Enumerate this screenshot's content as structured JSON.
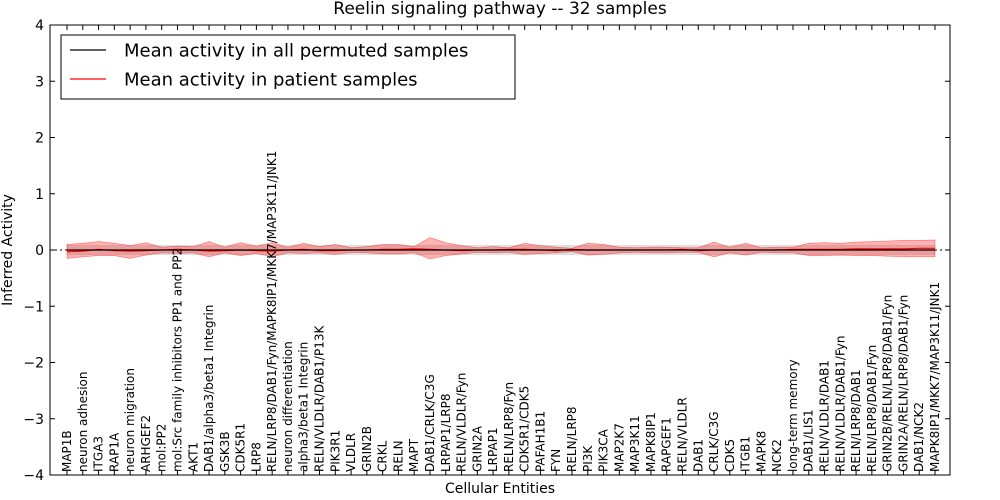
{
  "chart_data": {
    "type": "line",
    "title": "Reelin signaling pathway -- 32 samples",
    "xlabel": "Cellular Entities",
    "ylabel": "Inferred Activity",
    "ylim": [
      -4,
      4
    ],
    "yticks": [
      -4,
      -3,
      -2,
      -1,
      0,
      1,
      2,
      3,
      4
    ],
    "ytick_labels": [
      "−4",
      "−3",
      "−2",
      "−1",
      "0",
      "1",
      "2",
      "3",
      "4"
    ],
    "legend_position": "top-left",
    "categories": [
      "MAP1B",
      "neuron adhesion",
      "ITGA3",
      "RAP1A",
      "neuron migration",
      "ARHGEF2",
      "mol:PP2",
      "mol:Src family inhibitors PP1 and PP2",
      "AKT1",
      "DAB1/alpha3/beta1 Integrin",
      "GSK3B",
      "CDK5R1",
      "LRP8",
      "RELN/LRP8/DAB1/Fyn/MAPK8IP1/MKK7/MAP3K11/JNK1",
      "neuron differentiation",
      "alpha3/beta1 Integrin",
      "RELN/VLDLR/DAB1/P13K",
      "PIK3R1",
      "VLDLR",
      "GRIN2B",
      "CRKL",
      "RELN",
      "MAPT",
      "DAB1/CRLK/C3G",
      "LRPAP1/LRP8",
      "RELN/VLDLR/Fyn",
      "GRIN2A",
      "LRPAP1",
      "RELN/LRP8/Fyn",
      "CDK5R1/CDK5",
      "PAFAH1B1",
      "FYN",
      "RELN/LRP8",
      "PI3K",
      "PIK3CA",
      "MAP2K7",
      "MAP3K11",
      "MAPK8IP1",
      "RAPGEF1",
      "RELN/VLDLR",
      "DAB1",
      "CRLK/C3G",
      "CDK5",
      "ITGB1",
      "MAPK8",
      "NCK2",
      "long-term memory",
      "DAB1/LIS1",
      "RELN/VLDLR/DAB1",
      "RELN/VLDLR/DAB1/Fyn",
      "RELN/LRP8/DAB1",
      "RELN/LRP8/DAB1/Fyn",
      "GRIN2B/RELN/LRP8/DAB1/Fyn",
      "GRIN2A/RELN/LRP8/DAB1/Fyn",
      "DAB1/NCK2",
      "MAPK8IP1/MKK7/MAP3K11/JNK1"
    ],
    "series": [
      {
        "name": "Mean activity in all permuted samples",
        "color": "#000000",
        "values": [
          0.0,
          0.0,
          0.0,
          0.0,
          0.0,
          0.0,
          0.0,
          0.0,
          0.0,
          0.0,
          0.0,
          0.0,
          0.0,
          0.0,
          0.0,
          0.0,
          0.0,
          0.0,
          0.0,
          0.0,
          0.0,
          0.0,
          0.0,
          0.0,
          0.0,
          0.0,
          0.0,
          0.0,
          0.0,
          0.0,
          0.0,
          0.0,
          0.0,
          0.0,
          0.0,
          0.0,
          0.0,
          0.0,
          0.0,
          0.0,
          0.0,
          0.0,
          0.0,
          0.0,
          0.0,
          0.0,
          0.0,
          0.0,
          0.0,
          0.0,
          0.0,
          0.0,
          0.0,
          0.0,
          0.0,
          0.0
        ],
        "band_upper": [
          0.08,
          0.08,
          0.08,
          0.08,
          0.08,
          0.08,
          0.08,
          0.08,
          0.08,
          0.08,
          0.08,
          0.08,
          0.08,
          0.08,
          0.08,
          0.08,
          0.08,
          0.08,
          0.08,
          0.08,
          0.08,
          0.08,
          0.08,
          0.08,
          0.08,
          0.08,
          0.08,
          0.08,
          0.08,
          0.08,
          0.08,
          0.08,
          0.08,
          0.08,
          0.08,
          0.08,
          0.08,
          0.08,
          0.08,
          0.08,
          0.08,
          0.08,
          0.08,
          0.08,
          0.08,
          0.08,
          0.08,
          0.08,
          0.08,
          0.08,
          0.08,
          0.08,
          0.08,
          0.08,
          0.08,
          0.08
        ],
        "band_lower": [
          -0.08,
          -0.08,
          -0.08,
          -0.08,
          -0.08,
          -0.08,
          -0.08,
          -0.08,
          -0.08,
          -0.08,
          -0.08,
          -0.08,
          -0.08,
          -0.08,
          -0.08,
          -0.08,
          -0.08,
          -0.08,
          -0.08,
          -0.08,
          -0.08,
          -0.08,
          -0.08,
          -0.08,
          -0.08,
          -0.08,
          -0.08,
          -0.08,
          -0.08,
          -0.08,
          -0.08,
          -0.08,
          -0.08,
          -0.08,
          -0.08,
          -0.08,
          -0.08,
          -0.08,
          -0.08,
          -0.08,
          -0.08,
          -0.08,
          -0.08,
          -0.08,
          -0.08,
          -0.08,
          -0.08,
          -0.08,
          -0.08,
          -0.08,
          -0.08,
          -0.08,
          -0.08,
          -0.08,
          -0.08,
          -0.08
        ]
      },
      {
        "name": "Mean activity in patient samples",
        "color": "#ff0000",
        "values": [
          -0.03,
          -0.02,
          0.01,
          -0.01,
          -0.02,
          -0.01,
          0.0,
          0.01,
          0.0,
          -0.02,
          -0.01,
          0.0,
          -0.01,
          -0.02,
          0.0,
          0.01,
          -0.01,
          -0.01,
          0.0,
          0.0,
          0.01,
          0.01,
          0.02,
          0.01,
          0.0,
          -0.01,
          0.0,
          0.0,
          0.01,
          0.01,
          0.0,
          -0.01,
          0.01,
          0.0,
          0.0,
          0.0,
          0.0,
          0.0,
          0.0,
          0.01,
          -0.01,
          0.0,
          0.0,
          0.0,
          0.0,
          0.0,
          0.01,
          0.01,
          0.01,
          0.01,
          0.02,
          0.02,
          0.02,
          0.02,
          0.03,
          0.03
        ],
        "band_upper": [
          0.1,
          0.12,
          0.15,
          0.12,
          0.08,
          0.13,
          0.05,
          0.07,
          0.06,
          0.15,
          0.05,
          0.13,
          0.07,
          0.13,
          0.05,
          0.12,
          0.06,
          0.1,
          0.04,
          0.06,
          0.1,
          0.1,
          0.06,
          0.22,
          0.13,
          0.08,
          0.04,
          0.06,
          0.04,
          0.12,
          0.08,
          0.05,
          0.03,
          0.12,
          0.1,
          0.05,
          0.04,
          0.05,
          0.05,
          0.04,
          0.04,
          0.14,
          0.05,
          0.12,
          0.04,
          0.05,
          0.05,
          0.12,
          0.13,
          0.12,
          0.14,
          0.15,
          0.16,
          0.17,
          0.17,
          0.18
        ],
        "band_lower": [
          -0.15,
          -0.12,
          -0.1,
          -0.1,
          -0.15,
          -0.09,
          -0.05,
          -0.06,
          -0.05,
          -0.12,
          -0.05,
          -0.1,
          -0.06,
          -0.12,
          -0.05,
          -0.06,
          -0.05,
          -0.08,
          -0.04,
          -0.05,
          -0.07,
          -0.07,
          -0.05,
          -0.16,
          -0.1,
          -0.07,
          -0.04,
          -0.05,
          -0.04,
          -0.08,
          -0.06,
          -0.05,
          -0.03,
          -0.09,
          -0.08,
          -0.05,
          -0.04,
          -0.05,
          -0.05,
          -0.04,
          -0.04,
          -0.12,
          -0.05,
          -0.09,
          -0.04,
          -0.05,
          -0.05,
          -0.1,
          -0.1,
          -0.09,
          -0.1,
          -0.1,
          -0.11,
          -0.12,
          -0.12,
          -0.12
        ]
      }
    ]
  }
}
